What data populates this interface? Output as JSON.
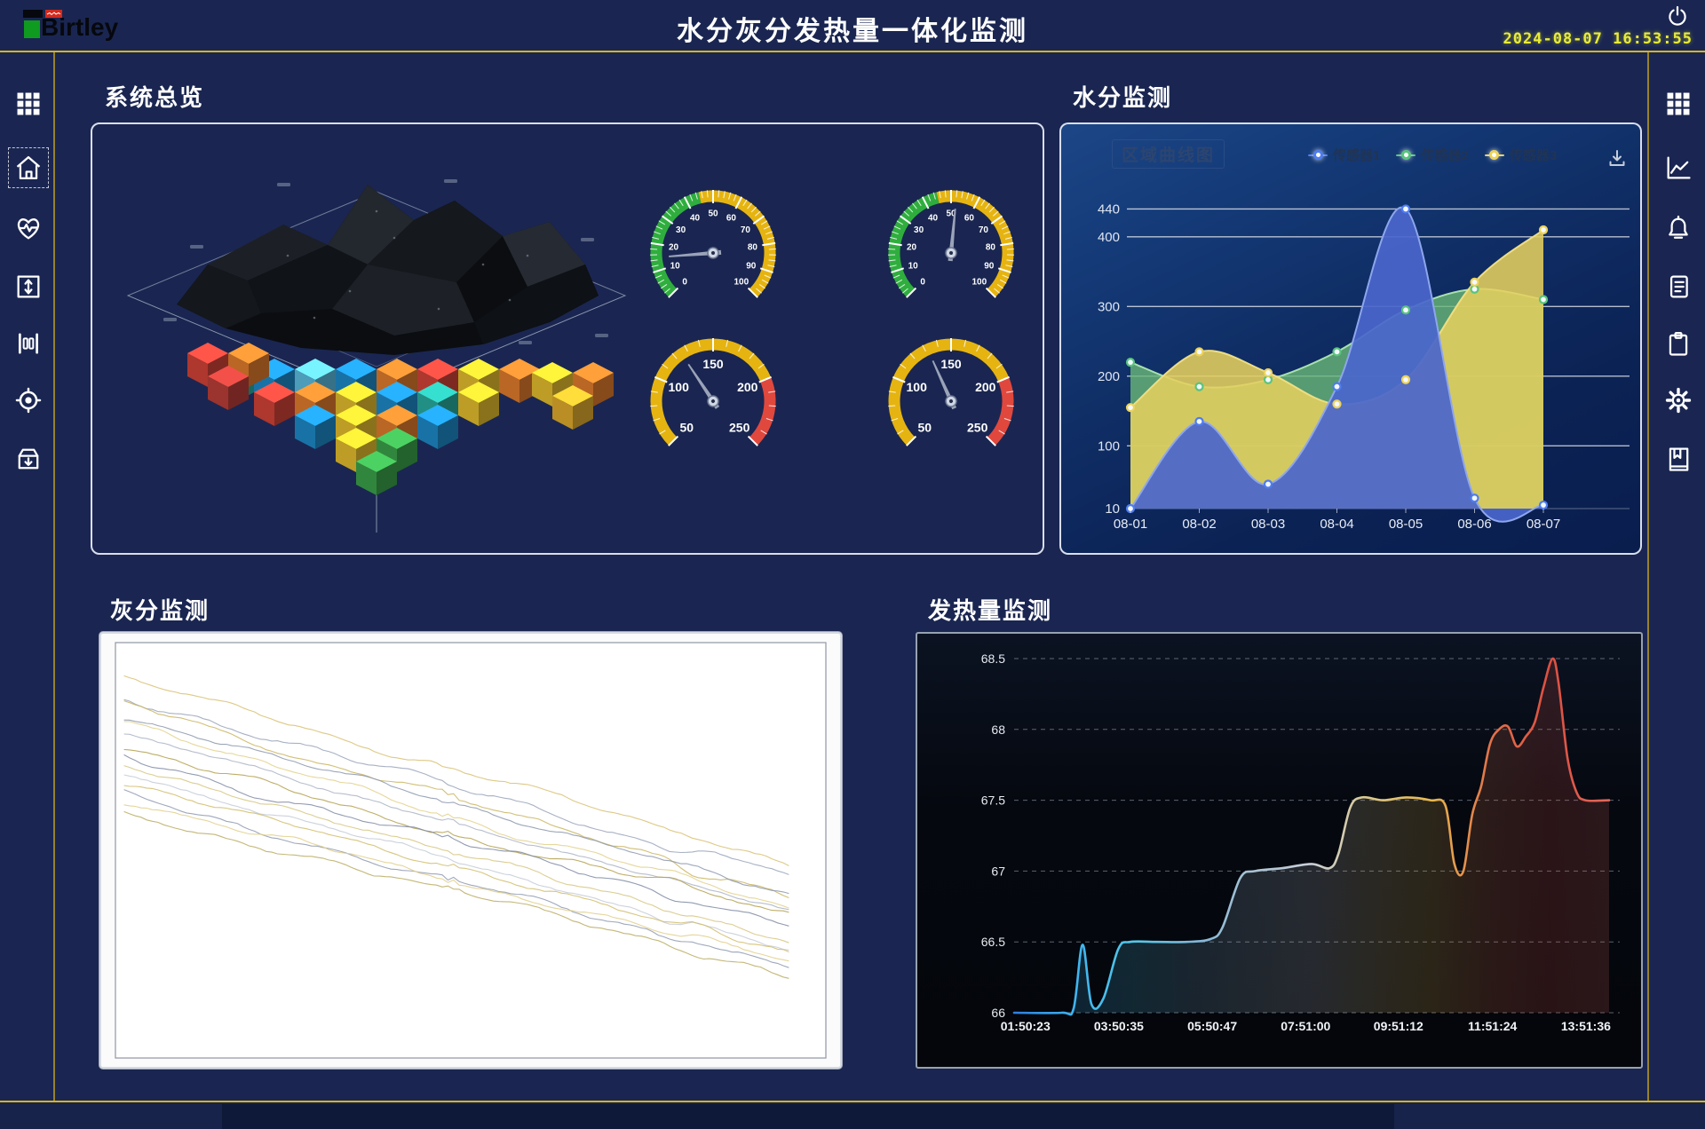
{
  "header": {
    "brand": "Birtley",
    "title": "水分灰分发热量一体化监测",
    "datetime": "2024-08-07 16:53:55"
  },
  "sidebar_left": {
    "active": "home",
    "icons": [
      "grid",
      "home",
      "heart-pulse",
      "vertical-adjust",
      "meter-bars",
      "target-locate",
      "archive-in"
    ]
  },
  "sidebar_right": {
    "icons": [
      "grid",
      "trend-chart",
      "alarm-bell",
      "log-document",
      "clipboard",
      "settings-gear",
      "bookmark-book"
    ]
  },
  "panels": {
    "overview": {
      "title": "系统总览"
    },
    "moisture": {
      "title": "水分监测",
      "inner_label": "区域曲线图"
    },
    "ash": {
      "title": "灰分监测"
    },
    "calorific": {
      "title": "发热量监测"
    }
  },
  "chart_data": [
    {
      "id": "moisture",
      "type": "area",
      "title": "区域曲线图",
      "categories": [
        "08-01",
        "08-02",
        "08-03",
        "08-04",
        "08-05",
        "08-06",
        "08-07"
      ],
      "series": [
        {
          "name": "传感器1",
          "line_color": "#8ea6ec",
          "fill_color": "#4a66cc",
          "marker_color": "#4f7df0",
          "values": [
            10,
            135,
            45,
            185,
            440,
            25,
            15
          ]
        },
        {
          "name": "传感器2",
          "line_color": "#a9e2ad",
          "fill_color": "#69b877",
          "marker_color": "#59c47d",
          "values": [
            220,
            185,
            195,
            235,
            295,
            325,
            310
          ]
        },
        {
          "name": "传感器3",
          "line_color": "#eedd82",
          "fill_color": "#e5cf5e",
          "marker_color": "#edd35a",
          "values": [
            155,
            235,
            205,
            160,
            195,
            335,
            410
          ]
        }
      ],
      "y_tick_labels": [
        440,
        400,
        300,
        200,
        100,
        10
      ],
      "ylim": [
        10,
        450
      ],
      "grid": true,
      "legend_position": "top-right"
    },
    {
      "id": "calorific",
      "type": "line",
      "title": "发热量监测",
      "x_tick_labels": [
        "01:50:23",
        "03:50:35",
        "05:50:47",
        "07:51:00",
        "09:51:12",
        "11:51:24",
        "13:51:36"
      ],
      "y_tick_labels": [
        66,
        66.5,
        67,
        67.5,
        68,
        68.5
      ],
      "ylim": [
        66,
        68.5
      ],
      "grid": "dashed",
      "points_pct_value": [
        [
          0,
          66
        ],
        [
          8,
          66
        ],
        [
          10,
          66.03
        ],
        [
          11.5,
          66.48
        ],
        [
          13,
          66.06
        ],
        [
          15,
          66.1
        ],
        [
          17.5,
          66.45
        ],
        [
          19.5,
          66.5
        ],
        [
          24,
          66.5
        ],
        [
          29,
          66.5
        ],
        [
          33,
          66.52
        ],
        [
          35,
          66.6
        ],
        [
          38,
          66.95
        ],
        [
          40.5,
          67
        ],
        [
          45,
          67.02
        ],
        [
          50,
          67.05
        ],
        [
          53,
          67.02
        ],
        [
          54.5,
          67.12
        ],
        [
          56.5,
          67.45
        ],
        [
          58.5,
          67.52
        ],
        [
          62,
          67.5
        ],
        [
          66,
          67.52
        ],
        [
          70,
          67.5
        ],
        [
          72.5,
          67.46
        ],
        [
          74,
          67.05
        ],
        [
          75.5,
          67.0
        ],
        [
          77,
          67.4
        ],
        [
          78.5,
          67.6
        ],
        [
          80,
          67.9
        ],
        [
          81.5,
          68.0
        ],
        [
          83,
          68.02
        ],
        [
          84.5,
          67.88
        ],
        [
          86,
          67.95
        ],
        [
          87.5,
          68.05
        ],
        [
          89,
          68.3
        ],
        [
          90.5,
          68.5
        ],
        [
          91.5,
          68.33
        ],
        [
          93,
          67.8
        ],
        [
          94.5,
          67.56
        ],
        [
          96,
          67.5
        ],
        [
          100,
          67.5
        ]
      ],
      "line_gradient": [
        "#2d7fe0",
        "#3fb4f0",
        "#52c8e8",
        "#7fb6d8",
        "#aac3d4",
        "#c9cfd8",
        "#ddc88a",
        "#e7b84e",
        "#e2734a",
        "#dd4f41",
        "#e3685a"
      ]
    },
    {
      "id": "ash",
      "type": "line",
      "title": "灰分监测",
      "note": "dense unlabeled multi-series trending downward on white background",
      "series_count": 14,
      "palette": [
        "#d8c070",
        "#99a3b8",
        "#c9b45e",
        "#8b96ad",
        "#e2d08a",
        "#aab3c4",
        "#b3a04e",
        "#7f8aa3",
        "#d5c67f",
        "#c3cad6",
        "#d0bc6a",
        "#8e99b0",
        "#e0ce88",
        "#b8ab60"
      ],
      "y_start_range": [
        0.1,
        0.4
      ],
      "y_end_range": [
        0.55,
        0.82
      ],
      "x_end": 0.95
    },
    {
      "id": "gauge-1",
      "type": "gauge",
      "min": 0,
      "max": 100,
      "value": 15,
      "tick_labels": [
        0,
        10,
        20,
        30,
        40,
        50,
        60,
        70,
        80,
        90,
        100
      ],
      "segments": [
        {
          "to": 45,
          "color": "#2fae3e"
        },
        {
          "to": 100,
          "color": "#e6b411"
        }
      ]
    },
    {
      "id": "gauge-2",
      "type": "gauge",
      "min": 0,
      "max": 100,
      "value": 52,
      "tick_labels": [
        0,
        10,
        20,
        30,
        40,
        50,
        60,
        70,
        80,
        90,
        100
      ],
      "segments": [
        {
          "to": 45,
          "color": "#2fae3e"
        },
        {
          "to": 100,
          "color": "#e6b411"
        }
      ]
    },
    {
      "id": "gauge-3",
      "type": "gauge",
      "min": 50,
      "max": 250,
      "value": 125,
      "tick_labels": [
        50,
        100,
        150,
        200,
        250
      ],
      "segments": [
        {
          "to": 200,
          "color": "#e6b411"
        },
        {
          "to": 250,
          "color": "#e0483e"
        }
      ]
    },
    {
      "id": "gauge-4",
      "type": "gauge",
      "min": 50,
      "max": 250,
      "value": 132,
      "tick_labels": [
        50,
        100,
        150,
        200,
        250
      ],
      "segments": [
        {
          "to": 200,
          "color": "#e6b411"
        },
        {
          "to": 250,
          "color": "#e0483e"
        }
      ]
    }
  ],
  "colors": {
    "background": "#1a2651",
    "accent_line": "#d8b41c",
    "clock": "#e9ec35",
    "panel_border": "#e9eefb"
  }
}
